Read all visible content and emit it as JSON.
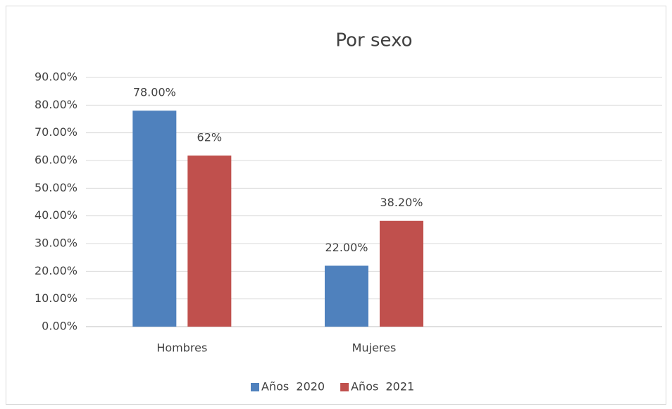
{
  "chart_data": {
    "type": "bar",
    "title": "Por sexo",
    "categories": [
      "Hombres",
      "Mujeres",
      null
    ],
    "series": [
      {
        "name": "Años  2020",
        "color": "#4f81bd",
        "values": [
          78,
          22,
          null
        ],
        "value_labels": [
          "78.00%",
          "22.00%",
          null
        ]
      },
      {
        "name": "Años  2021",
        "color": "#c0504d",
        "values": [
          61.8,
          38.2,
          null
        ],
        "value_labels": [
          "62%",
          "38.20%",
          null
        ]
      }
    ],
    "ylim": [
      0,
      90
    ],
    "yticks": [
      {
        "value": 0,
        "label": "0.00%"
      },
      {
        "value": 10,
        "label": "10.00%"
      },
      {
        "value": 20,
        "label": "20.00%"
      },
      {
        "value": 30,
        "label": "30.00%"
      },
      {
        "value": 40,
        "label": "40.00%"
      },
      {
        "value": 50,
        "label": "50.00%"
      },
      {
        "value": 60,
        "label": "60.00%"
      },
      {
        "value": 70,
        "label": "70.00%"
      },
      {
        "value": 80,
        "label": "80.00%"
      },
      {
        "value": 90,
        "label": "90.00%"
      }
    ],
    "grid": true,
    "legend": "bottom"
  }
}
